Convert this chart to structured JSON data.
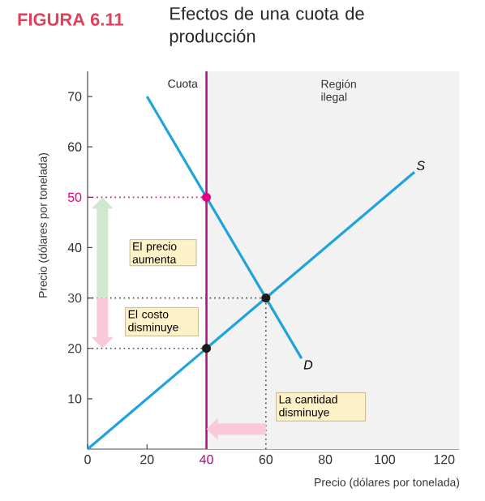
{
  "chart_data": {
    "type": "line",
    "title": "FIGURA 6.11",
    "subtitle": "Efectos de una cuota de producción",
    "xlabel": "Precio (dólares por tonelada)",
    "ylabel": "Precio (dólares por tonelada)",
    "xlim": [
      0,
      125
    ],
    "ylim": [
      0,
      75
    ],
    "xticks": [
      0,
      20,
      40,
      60,
      80,
      100,
      120
    ],
    "yticks": [
      10,
      20,
      30,
      40,
      50,
      60,
      70
    ],
    "series": [
      {
        "line_style": "dotted",
        "color": "#e6007e",
        "x": [
          0,
          40
        ],
        "values": [
          50,
          50
        ]
      },
      {
        "line_style": "dotted",
        "color": "#444444",
        "x": [
          0,
          60
        ],
        "values": [
          30,
          30
        ]
      },
      {
        "line_style": "dotted",
        "color": "#444444",
        "x": [
          0,
          40
        ],
        "values": [
          20,
          20
        ]
      },
      {
        "line_style": "dotted",
        "color": "#444444",
        "x": [
          60,
          60
        ],
        "values": [
          0,
          30
        ]
      },
      {
        "name": "S",
        "color": "#1fa3dc",
        "x": [
          0,
          110
        ],
        "values": [
          0,
          55
        ]
      },
      {
        "name": "D",
        "color": "#1fa3dc",
        "x": [
          20,
          72
        ],
        "values": [
          70,
          18
        ]
      },
      {
        "type": "scatter",
        "color": "#e6007e",
        "x": [
          40
        ],
        "values": [
          50
        ]
      },
      {
        "type": "scatter",
        "color": "#1a1a1a",
        "x": [
          60,
          40
        ],
        "values": [
          30,
          20
        ]
      }
    ],
    "ref_lines": [
      {
        "axis": "x",
        "value": 40,
        "label": "Cuota",
        "color": "#b0157f"
      }
    ],
    "bands": [
      {
        "axis": "x",
        "from": 40,
        "to": 125,
        "label": "Región ilegal",
        "color": "#f2f2f2"
      }
    ],
    "annotations": [
      "El precio aumenta",
      "El costo disminuye",
      "La cantidad disminuye"
    ]
  }
}
